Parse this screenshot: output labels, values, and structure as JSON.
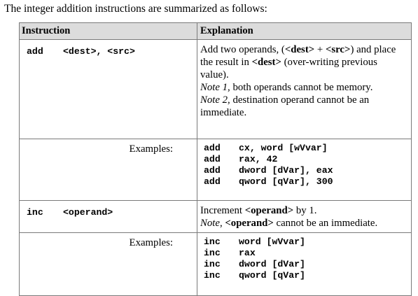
{
  "intro": "The integer addition instructions are summarized as follows:",
  "table": {
    "headers": [
      "Instruction",
      "Explanation"
    ],
    "rows": [
      {
        "mnemonic": "add",
        "operands": "<dest>, <src>",
        "explanation": {
          "p1_a": "Add two operands, (",
          "p1_dest": "<dest>",
          "p1_b": " + ",
          "p1_src": "<src>",
          "p1_c": ") and place the result in ",
          "p1_dest2": "<dest>",
          "p1_d": " (over-writing previous value).",
          "note1_label": "Note 1",
          "note1_text": ", both operands cannot be memory.",
          "note2_label": "Note 2",
          "note2_text": ", destination operand cannot be an immediate."
        },
        "examples_label": "Examples:",
        "examples": [
          {
            "mn": "add",
            "args": "cx, word [wVvar]"
          },
          {
            "mn": "add",
            "args": "rax, 42"
          },
          {
            "mn": "add",
            "args": "dword [dVar], eax"
          },
          {
            "mn": "add",
            "args": "qword [qVar], 300"
          }
        ]
      },
      {
        "mnemonic": "inc",
        "operands": "<operand>",
        "explanation": {
          "p1_a": "Increment ",
          "p1_op": "<operand>",
          "p1_b": " by 1.",
          "note_label": "Note",
          "note_a": ", ",
          "note_op": "<operand>",
          "note_b": " cannot be an immediate."
        },
        "examples_label": "Examples:",
        "examples": [
          {
            "mn": "inc",
            "args": "word [wVvar]"
          },
          {
            "mn": "inc",
            "args": "rax"
          },
          {
            "mn": "inc",
            "args": "dword [dVar]"
          },
          {
            "mn": "inc",
            "args": "qword [qVar]"
          }
        ]
      }
    ]
  }
}
